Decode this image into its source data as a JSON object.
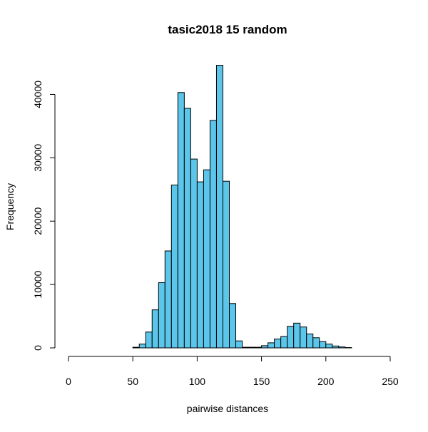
{
  "chart_data": {
    "type": "bar",
    "title": "tasic2018 15 random",
    "xlabel": "pairwise distances",
    "ylabel": "Frequency",
    "bin_width": 5,
    "bin_starts": [
      0,
      5,
      10,
      15,
      20,
      25,
      30,
      35,
      40,
      45,
      50,
      55,
      60,
      65,
      70,
      75,
      80,
      85,
      90,
      95,
      100,
      105,
      110,
      115,
      120,
      125,
      130,
      135,
      140,
      145,
      150,
      155,
      160,
      165,
      170,
      175,
      180,
      185,
      190,
      195,
      200,
      205,
      210,
      215,
      220,
      225,
      230,
      235,
      240
    ],
    "values": [
      0,
      0,
      0,
      0,
      0,
      0,
      0,
      0,
      0,
      0,
      100,
      600,
      2500,
      6000,
      10300,
      15300,
      25700,
      40300,
      37800,
      29800,
      26200,
      28100,
      35900,
      44600,
      26300,
      7000,
      1100,
      100,
      100,
      100,
      350,
      800,
      1400,
      1800,
      3400,
      3900,
      3300,
      2200,
      1600,
      1000,
      600,
      300,
      150,
      50,
      0,
      0,
      0,
      0,
      0
    ],
    "xlim": [
      0,
      250
    ],
    "ylim": [
      0,
      45000
    ],
    "x_ticks": [
      0,
      50,
      100,
      150,
      200,
      250
    ],
    "y_ticks": [
      0,
      10000,
      20000,
      30000,
      40000
    ],
    "bar_color": "#5BC5EA",
    "bar_edge_color": "#000000",
    "grid": false
  }
}
